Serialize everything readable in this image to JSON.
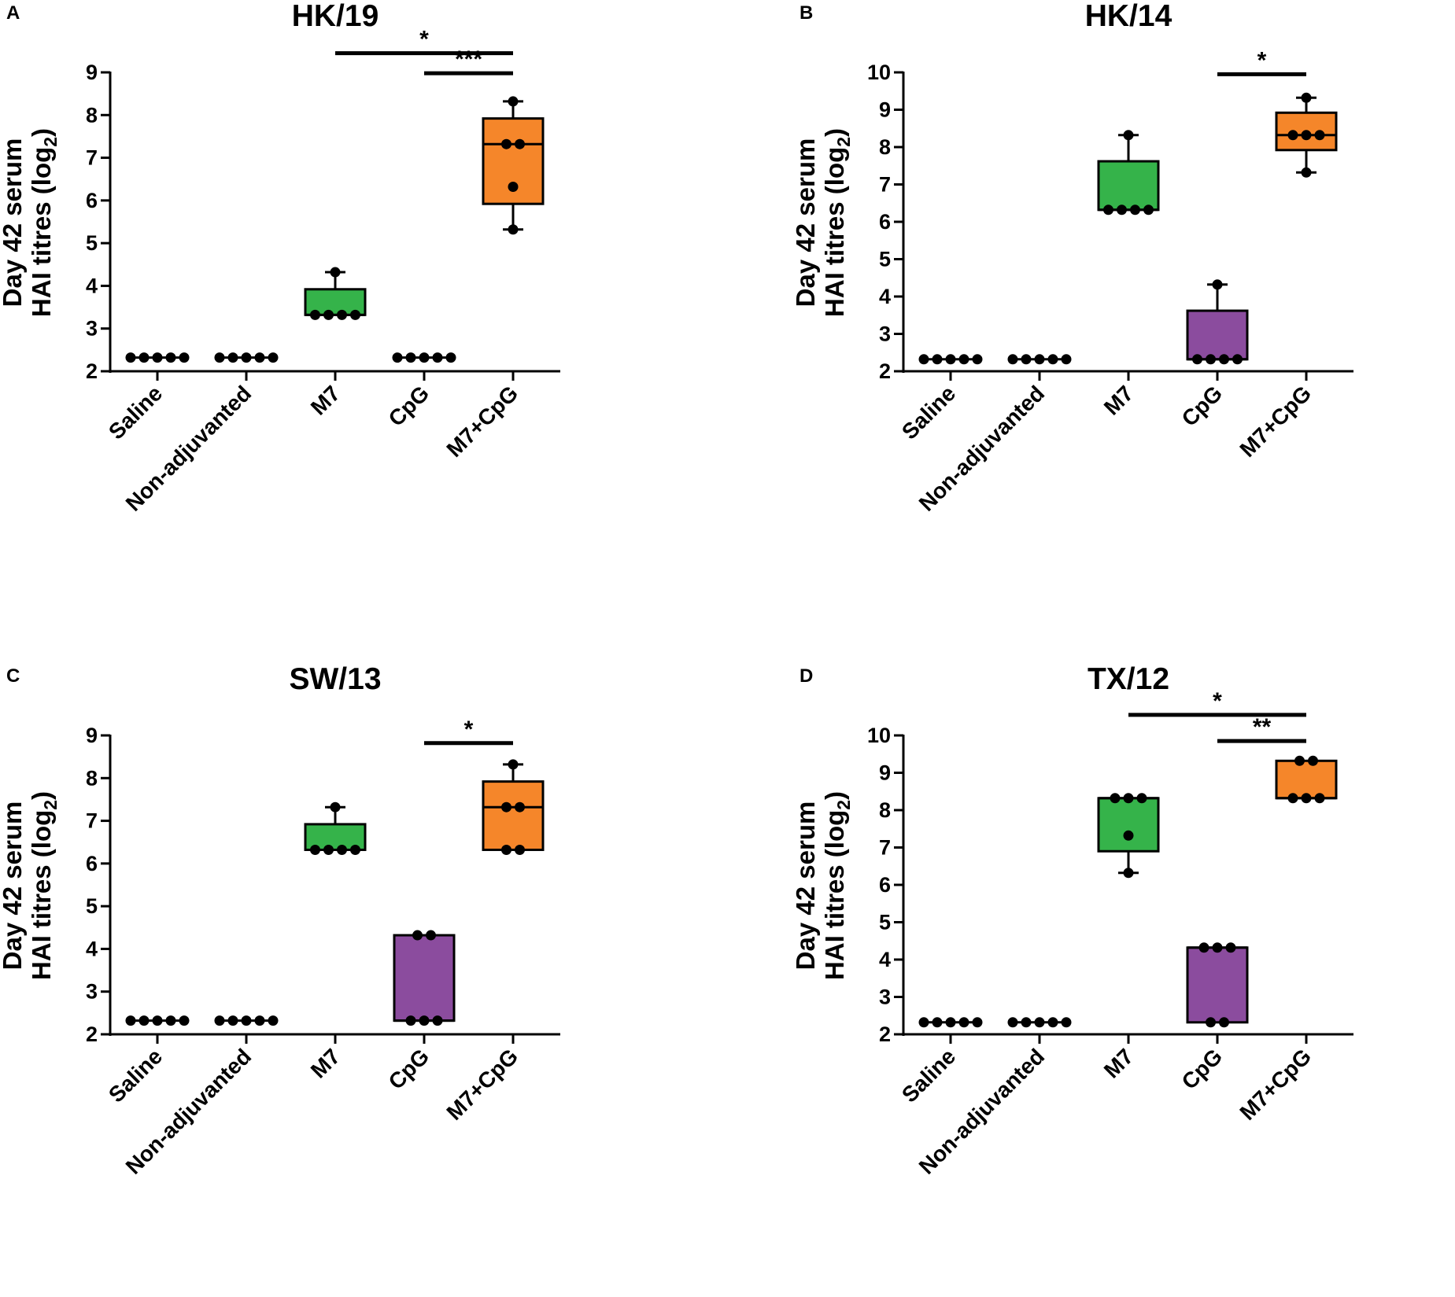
{
  "figure": {
    "groups": [
      "Saline",
      "Non-adjuvanted",
      "M7",
      "CpG",
      "M7+CpG"
    ],
    "ylabel_line1": "Day 42 serum",
    "ylabel_line2": "HAI titres (log",
    "ylabel_sub": "2",
    "ylabel_close": ")"
  },
  "colors": {
    "Saline": "#000000",
    "Non-adjuvanted": "#000000",
    "M7": "#35b34a",
    "CpG": "#8b4c9e",
    "M7+CpG": "#f5862a",
    "axis": "#000000"
  },
  "chart_data": [
    {
      "id": "A",
      "type": "box",
      "panel_label": "A",
      "title": "HK/19",
      "ylim": [
        2,
        9
      ],
      "yticks": [
        2,
        3,
        4,
        5,
        6,
        7,
        8,
        9
      ],
      "boxes": [
        {
          "group": "Saline",
          "whisker_low": 2.32,
          "q1": 2.32,
          "median": 2.32,
          "q3": 2.32,
          "whisker_high": 2.32,
          "points": [
            2.32,
            2.32,
            2.32,
            2.32,
            2.32
          ]
        },
        {
          "group": "Non-adjuvanted",
          "whisker_low": 2.32,
          "q1": 2.32,
          "median": 2.32,
          "q3": 2.32,
          "whisker_high": 2.32,
          "points": [
            2.32,
            2.32,
            2.32,
            2.32,
            2.32
          ]
        },
        {
          "group": "M7",
          "whisker_low": 3.32,
          "q1": 3.32,
          "median": 3.32,
          "q3": 3.92,
          "whisker_high": 4.32,
          "points": [
            3.32,
            3.32,
            3.32,
            3.32,
            4.32
          ]
        },
        {
          "group": "CpG",
          "whisker_low": 2.32,
          "q1": 2.32,
          "median": 2.32,
          "q3": 2.32,
          "whisker_high": 2.32,
          "points": [
            2.32,
            2.32,
            2.32,
            2.32,
            2.32
          ]
        },
        {
          "group": "M7+CpG",
          "whisker_low": 5.32,
          "q1": 5.92,
          "median": 7.32,
          "q3": 7.92,
          "whisker_high": 8.32,
          "points": [
            5.32,
            6.32,
            7.32,
            7.32,
            8.32
          ]
        }
      ],
      "significance": [
        {
          "from": "M7",
          "to": "M7+CpG",
          "label": "*",
          "y": 9.45
        },
        {
          "from": "CpG",
          "to": "M7+CpG",
          "label": "***",
          "y": 8.98
        }
      ]
    },
    {
      "id": "B",
      "type": "box",
      "panel_label": "B",
      "title": "HK/14",
      "ylim": [
        2,
        10
      ],
      "yticks": [
        2,
        3,
        4,
        5,
        6,
        7,
        8,
        9,
        10
      ],
      "boxes": [
        {
          "group": "Saline",
          "whisker_low": 2.32,
          "q1": 2.32,
          "median": 2.32,
          "q3": 2.32,
          "whisker_high": 2.32,
          "points": [
            2.32,
            2.32,
            2.32,
            2.32,
            2.32
          ]
        },
        {
          "group": "Non-adjuvanted",
          "whisker_low": 2.32,
          "q1": 2.32,
          "median": 2.32,
          "q3": 2.32,
          "whisker_high": 2.32,
          "points": [
            2.32,
            2.32,
            2.32,
            2.32,
            2.32
          ]
        },
        {
          "group": "M7",
          "whisker_low": 6.32,
          "q1": 6.32,
          "median": 6.32,
          "q3": 7.62,
          "whisker_high": 8.32,
          "points": [
            6.32,
            6.32,
            6.32,
            6.32,
            8.32
          ]
        },
        {
          "group": "CpG",
          "whisker_low": 2.32,
          "q1": 2.32,
          "median": 2.32,
          "q3": 3.62,
          "whisker_high": 4.32,
          "points": [
            2.32,
            2.32,
            2.32,
            2.32,
            4.32
          ]
        },
        {
          "group": "M7+CpG",
          "whisker_low": 7.32,
          "q1": 7.92,
          "median": 8.32,
          "q3": 8.92,
          "whisker_high": 9.32,
          "points": [
            7.32,
            8.32,
            8.32,
            8.32,
            9.32
          ]
        }
      ],
      "significance": [
        {
          "from": "CpG",
          "to": "M7+CpG",
          "label": "*",
          "y": 9.95
        }
      ]
    },
    {
      "id": "C",
      "type": "box",
      "panel_label": "C",
      "title": "SW/13",
      "ylim": [
        2,
        9
      ],
      "yticks": [
        2,
        3,
        4,
        5,
        6,
        7,
        8,
        9
      ],
      "boxes": [
        {
          "group": "Saline",
          "whisker_low": 2.32,
          "q1": 2.32,
          "median": 2.32,
          "q3": 2.32,
          "whisker_high": 2.32,
          "points": [
            2.32,
            2.32,
            2.32,
            2.32,
            2.32
          ]
        },
        {
          "group": "Non-adjuvanted",
          "whisker_low": 2.32,
          "q1": 2.32,
          "median": 2.32,
          "q3": 2.32,
          "whisker_high": 2.32,
          "points": [
            2.32,
            2.32,
            2.32,
            2.32,
            2.32
          ]
        },
        {
          "group": "M7",
          "whisker_low": 6.32,
          "q1": 6.32,
          "median": 6.32,
          "q3": 6.92,
          "whisker_high": 7.32,
          "points": [
            6.32,
            6.32,
            6.32,
            6.32,
            7.32
          ]
        },
        {
          "group": "CpG",
          "whisker_low": 2.32,
          "q1": 2.32,
          "median": 2.32,
          "q3": 4.32,
          "whisker_high": 4.32,
          "points": [
            2.32,
            2.32,
            2.32,
            4.32,
            4.32
          ]
        },
        {
          "group": "M7+CpG",
          "whisker_low": 6.32,
          "q1": 6.32,
          "median": 7.32,
          "q3": 7.92,
          "whisker_high": 8.32,
          "points": [
            6.32,
            7.32,
            7.32,
            8.32,
            6.32
          ]
        }
      ],
      "significance": [
        {
          "from": "CpG",
          "to": "M7+CpG",
          "label": "*",
          "y": 8.82
        }
      ]
    },
    {
      "id": "D",
      "type": "box",
      "panel_label": "D",
      "title": "TX/12",
      "ylim": [
        2,
        10
      ],
      "yticks": [
        2,
        3,
        4,
        5,
        6,
        7,
        8,
        9,
        10
      ],
      "boxes": [
        {
          "group": "Saline",
          "whisker_low": 2.32,
          "q1": 2.32,
          "median": 2.32,
          "q3": 2.32,
          "whisker_high": 2.32,
          "points": [
            2.32,
            2.32,
            2.32,
            2.32,
            2.32
          ]
        },
        {
          "group": "Non-adjuvanted",
          "whisker_low": 2.32,
          "q1": 2.32,
          "median": 2.32,
          "q3": 2.32,
          "whisker_high": 2.32,
          "points": [
            2.32,
            2.32,
            2.32,
            2.32,
            2.32
          ]
        },
        {
          "group": "M7",
          "whisker_low": 6.32,
          "q1": 6.9,
          "median": 8.32,
          "q3": 8.32,
          "whisker_high": 8.32,
          "points": [
            6.32,
            7.32,
            8.32,
            8.32,
            8.32
          ]
        },
        {
          "group": "CpG",
          "whisker_low": 2.32,
          "q1": 2.32,
          "median": 4.32,
          "q3": 4.32,
          "whisker_high": 4.32,
          "points": [
            2.32,
            4.32,
            4.32,
            4.32,
            2.32
          ]
        },
        {
          "group": "M7+CpG",
          "whisker_low": 8.32,
          "q1": 8.32,
          "median": 8.32,
          "q3": 9.32,
          "whisker_high": 9.32,
          "points": [
            8.32,
            8.32,
            8.32,
            9.32,
            9.32
          ]
        }
      ],
      "significance": [
        {
          "from": "M7",
          "to": "M7+CpG",
          "label": "*",
          "y": 10.55
        },
        {
          "from": "CpG",
          "to": "M7+CpG",
          "label": "**",
          "y": 9.85
        }
      ]
    }
  ]
}
